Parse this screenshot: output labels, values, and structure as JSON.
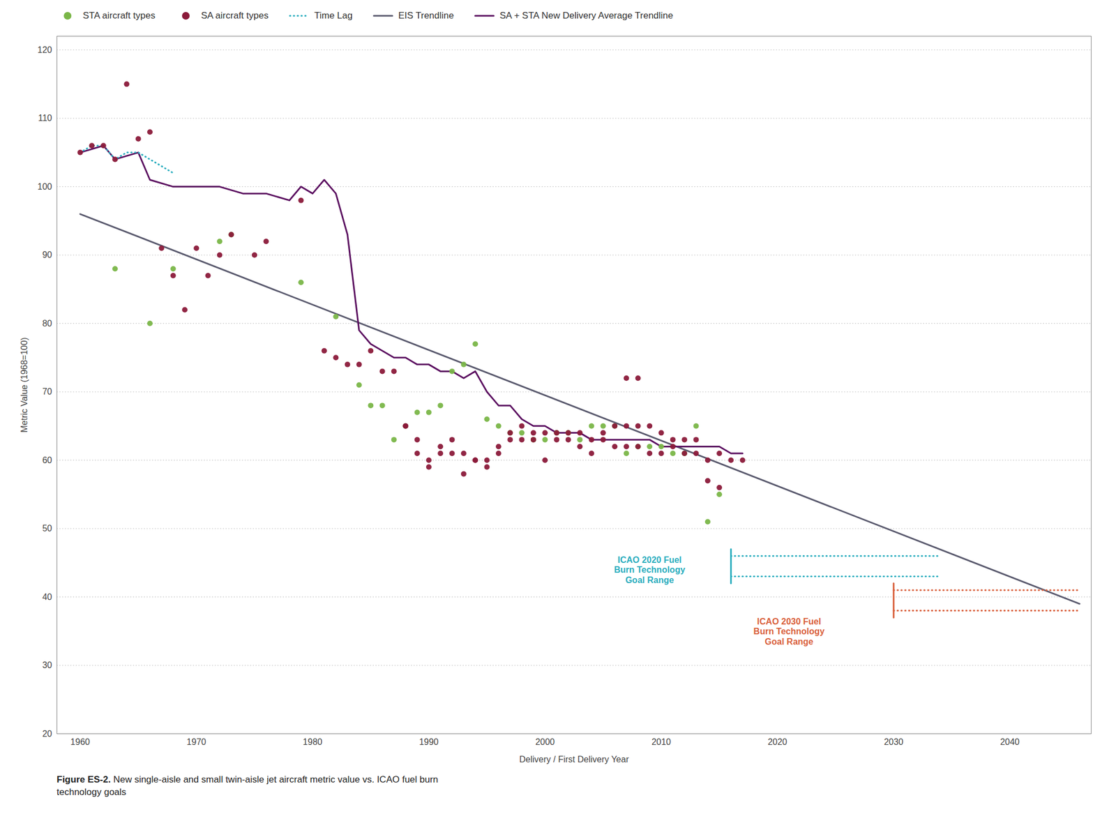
{
  "chart_data": {
    "type": "scatter",
    "xlabel": "Delivery / First Delivery Year",
    "ylabel": "Metric Value (1968=100)",
    "xlim": [
      1958,
      2047
    ],
    "ylim": [
      20,
      122
    ],
    "xticks": [
      1960,
      1970,
      1980,
      1990,
      2000,
      2010,
      2020,
      2030,
      2040
    ],
    "yticks": [
      20,
      30,
      40,
      50,
      60,
      70,
      80,
      90,
      100,
      110,
      120
    ],
    "grid": "y",
    "legend": "top",
    "series": [
      {
        "name": "STA aircraft types",
        "type": "scatter",
        "marker": "circle",
        "color": "#7ab648",
        "x": [
          1963,
          1966,
          1968,
          1972,
          1973,
          1979,
          1982,
          1984,
          1985,
          1986,
          1987,
          1988,
          1989,
          1990,
          1991,
          1992,
          1993,
          1994,
          1995,
          1996,
          1997,
          1998,
          1999,
          2000,
          2001,
          2002,
          2003,
          2004,
          2005,
          2006,
          2007,
          2008,
          2009,
          2010,
          2011,
          2012,
          2013,
          2014,
          2015
        ],
        "values": [
          88,
          80,
          88,
          92,
          93,
          86,
          81,
          71,
          68,
          68,
          63,
          65,
          67,
          67,
          68,
          73,
          74,
          77,
          66,
          65,
          64,
          64,
          63,
          63,
          64,
          64,
          63,
          65,
          65,
          65,
          61,
          62,
          62,
          62,
          61,
          61,
          65,
          51,
          55
        ]
      },
      {
        "name": "SA aircraft types",
        "type": "scatter",
        "marker": "circle",
        "color": "#8b1a3a",
        "x": [
          1960,
          1961,
          1962,
          1963,
          1964,
          1965,
          1966,
          1967,
          1968,
          1969,
          1970,
          1971,
          1972,
          1973,
          1975,
          1976,
          1979,
          1981,
          1982,
          1983,
          1984,
          1985,
          1986,
          1987,
          1988,
          1989,
          1990,
          1991,
          1992,
          1993,
          1994,
          1995,
          1996,
          1997,
          1998,
          1999,
          2000,
          2001,
          2002,
          2003,
          2004,
          2005,
          2006,
          2007,
          2008,
          2009,
          2010,
          2011,
          2012,
          2013,
          2014,
          2015,
          2016,
          2017,
          1988,
          1989,
          1990,
          1991,
          1992,
          1993,
          1994,
          1995,
          1996,
          1997,
          1998,
          1999,
          2000,
          2001,
          2002,
          2003,
          2004,
          2005,
          2006,
          2007,
          2008,
          2009,
          2010,
          2011,
          2012,
          2013,
          2014,
          2015,
          2007,
          2008
        ],
        "values": [
          105,
          106,
          106,
          104,
          115,
          107,
          108,
          91,
          87,
          82,
          91,
          87,
          90,
          93,
          90,
          92,
          98,
          76,
          75,
          74,
          74,
          76,
          73,
          73,
          65,
          63,
          60,
          61,
          63,
          61,
          60,
          60,
          62,
          64,
          65,
          63,
          64,
          64,
          64,
          64,
          63,
          63,
          62,
          62,
          62,
          61,
          61,
          62,
          61,
          61,
          60,
          61,
          60,
          60,
          65,
          61,
          59,
          62,
          61,
          58,
          60,
          59,
          61,
          63,
          63,
          64,
          60,
          63,
          63,
          62,
          61,
          64,
          65,
          65,
          65,
          65,
          64,
          63,
          63,
          63,
          57,
          56,
          72,
          72
        ]
      },
      {
        "name": "Time Lag",
        "type": "line",
        "line_style": "dotted",
        "color": "#2aadbe",
        "x": [
          1960,
          1961,
          1962,
          1963,
          1964,
          1965,
          1966,
          1967,
          1968
        ],
        "values": [
          105,
          106,
          106,
          104,
          105,
          105,
          104,
          103,
          102
        ]
      },
      {
        "name": "EIS Trendline",
        "type": "line",
        "line_style": "solid",
        "color": "#5a5a6e",
        "x": [
          1960,
          2046
        ],
        "values": [
          96,
          39
        ]
      },
      {
        "name": "SA + STA New Delivery Average Trendline",
        "type": "line",
        "line_style": "solid",
        "color": "#5b1060",
        "x": [
          1960,
          1962,
          1963,
          1965,
          1966,
          1968,
          1970,
          1972,
          1974,
          1976,
          1978,
          1979,
          1980,
          1981,
          1982,
          1983,
          1984,
          1985,
          1986,
          1987,
          1988,
          1989,
          1990,
          1991,
          1992,
          1993,
          1994,
          1995,
          1996,
          1997,
          1998,
          1999,
          2000,
          2001,
          2002,
          2003,
          2004,
          2005,
          2006,
          2007,
          2008,
          2009,
          2010,
          2011,
          2012,
          2013,
          2014,
          2015,
          2016,
          2017
        ],
        "values": [
          105,
          106,
          104,
          105,
          101,
          100,
          100,
          100,
          99,
          99,
          98,
          100,
          99,
          101,
          99,
          93,
          79,
          77,
          76,
          75,
          75,
          74,
          74,
          73,
          73,
          72,
          73,
          70,
          68,
          68,
          66,
          65,
          65,
          64,
          64,
          64,
          63,
          63,
          63,
          63,
          63,
          63,
          62,
          62,
          62,
          62,
          62,
          62,
          61,
          61
        ]
      }
    ],
    "goal_ranges": [
      {
        "color": "#2aadbe",
        "x": [
          2016,
          2034
        ],
        "y": [
          43,
          46
        ],
        "bracket": [
          42,
          47
        ]
      },
      {
        "color": "#d95f3b",
        "x": [
          2030,
          2046
        ],
        "y": [
          38,
          41
        ],
        "bracket": [
          37,
          42
        ]
      }
    ],
    "annotations": [
      {
        "text": "ICAO 2020 Fuel\nBurn Technology\nGoal Range",
        "x": 2009,
        "y": 44,
        "color": "#2aadbe"
      },
      {
        "text": "ICAO 2030 Fuel\nBurn Technology\nGoal Range",
        "x": 2021,
        "y": 35,
        "color": "#d95f3b"
      }
    ],
    "caption": {
      "bold": "Figure ES-2.",
      "text": " New single-aisle and small twin-aisle jet aircraft metric value vs. ICAO fuel burn\ntechnology goals"
    }
  }
}
